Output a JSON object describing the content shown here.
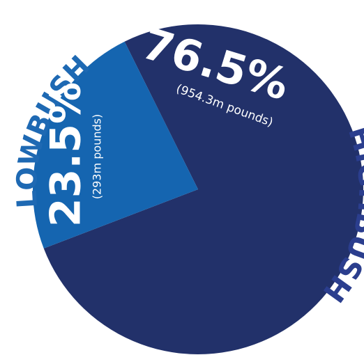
{
  "chart_data": {
    "type": "pie",
    "categories": [
      "HIGHBUSH",
      "LOWBUSH"
    ],
    "values": [
      76.5,
      23.5
    ],
    "value_labels": [
      "76.5%",
      "23.5%"
    ],
    "sublabels": [
      "(954.3m pounds)",
      "(293m pounds)"
    ],
    "colors": [
      "#22316a",
      "#1565b0"
    ],
    "label_colors": [
      "#2b3e8e",
      "#1e69b3"
    ]
  }
}
